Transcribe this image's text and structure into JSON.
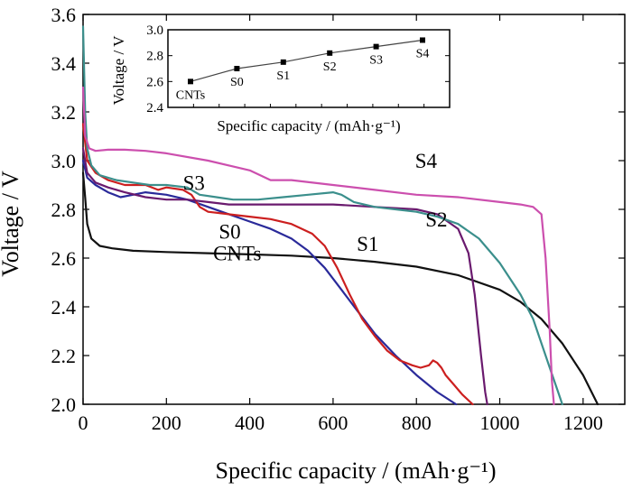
{
  "colors": {
    "CNTs": "#111111",
    "S0": "#2a2a9a",
    "S1": "#cc1f1f",
    "S2": "#6a1a6e",
    "S3": "#3b8f8c",
    "S4": "#cc4fae"
  },
  "chart_data": [
    {
      "type": "line",
      "xlabel": "Specific capacity / (mAh·g⁻¹)",
      "ylabel": "Voltage / V",
      "xlim": [
        0,
        1300
      ],
      "ylim": [
        2.0,
        3.6
      ],
      "x_ticks": [
        0,
        200,
        400,
        600,
        800,
        1000,
        1200
      ],
      "x_tick_labels": [
        "0",
        "200",
        "400",
        "600",
        "800",
        "1000",
        "1200"
      ],
      "y_ticks": [
        2.0,
        2.2,
        2.4,
        2.6,
        2.8,
        3.0,
        3.2,
        3.4,
        3.6
      ],
      "y_tick_labels": [
        "2.0",
        "2.2",
        "2.4",
        "2.6",
        "2.8",
        "3.0",
        "3.2",
        "3.4",
        "3.6"
      ],
      "grid": false,
      "series": [
        {
          "name": "CNTs",
          "label_at": [
            370,
            2.59
          ],
          "x": [
            0,
            5,
            10,
            20,
            40,
            70,
            120,
            200,
            300,
            400,
            500,
            600,
            700,
            800,
            900,
            1000,
            1050,
            1100,
            1150,
            1200,
            1235
          ],
          "y": [
            2.95,
            2.85,
            2.74,
            2.68,
            2.65,
            2.64,
            2.63,
            2.625,
            2.62,
            2.615,
            2.61,
            2.6,
            2.585,
            2.565,
            2.53,
            2.47,
            2.42,
            2.35,
            2.25,
            2.12,
            2.0
          ]
        },
        {
          "name": "S0",
          "label_at": [
            352,
            2.68
          ],
          "x": [
            0,
            10,
            30,
            60,
            90,
            120,
            150,
            200,
            250,
            300,
            350,
            400,
            450,
            500,
            540,
            580,
            620,
            660,
            700,
            750,
            800,
            850,
            895
          ],
          "y": [
            3.0,
            2.93,
            2.9,
            2.87,
            2.85,
            2.86,
            2.87,
            2.86,
            2.84,
            2.81,
            2.78,
            2.75,
            2.72,
            2.68,
            2.63,
            2.56,
            2.47,
            2.38,
            2.29,
            2.2,
            2.12,
            2.05,
            2.0
          ]
        },
        {
          "name": "S1",
          "label_at": [
            683,
            2.63
          ],
          "x": [
            0,
            10,
            30,
            60,
            100,
            150,
            180,
            200,
            240,
            260,
            280,
            300,
            350,
            400,
            450,
            500,
            550,
            580,
            610,
            640,
            670,
            700,
            730,
            760,
            790,
            810,
            830,
            840,
            850,
            860,
            870,
            890,
            910,
            935
          ],
          "y": [
            3.15,
            3.0,
            2.95,
            2.92,
            2.9,
            2.9,
            2.88,
            2.89,
            2.88,
            2.86,
            2.81,
            2.79,
            2.78,
            2.77,
            2.76,
            2.74,
            2.7,
            2.65,
            2.56,
            2.45,
            2.35,
            2.28,
            2.22,
            2.18,
            2.16,
            2.15,
            2.16,
            2.18,
            2.17,
            2.15,
            2.12,
            2.08,
            2.04,
            2.0
          ]
        },
        {
          "name": "S2",
          "label_at": [
            848,
            2.73
          ],
          "x": [
            0,
            10,
            30,
            60,
            100,
            150,
            200,
            250,
            300,
            350,
            400,
            500,
            600,
            700,
            800,
            850,
            900,
            925,
            940,
            955,
            965,
            970
          ],
          "y": [
            3.05,
            2.95,
            2.91,
            2.89,
            2.87,
            2.85,
            2.84,
            2.84,
            2.83,
            2.82,
            2.82,
            2.82,
            2.82,
            2.81,
            2.8,
            2.78,
            2.72,
            2.62,
            2.45,
            2.2,
            2.05,
            2.0
          ]
        },
        {
          "name": "S3",
          "label_at": [
            266,
            2.88
          ],
          "x": [
            0,
            5,
            10,
            20,
            40,
            80,
            120,
            160,
            200,
            250,
            280,
            320,
            360,
            420,
            480,
            540,
            600,
            620,
            650,
            700,
            750,
            800,
            850,
            900,
            950,
            1000,
            1050,
            1080,
            1100,
            1120,
            1140,
            1150
          ],
          "y": [
            3.55,
            3.2,
            3.05,
            2.98,
            2.94,
            2.92,
            2.91,
            2.9,
            2.9,
            2.89,
            2.86,
            2.85,
            2.84,
            2.84,
            2.85,
            2.86,
            2.87,
            2.86,
            2.83,
            2.81,
            2.8,
            2.79,
            2.77,
            2.74,
            2.68,
            2.58,
            2.45,
            2.35,
            2.25,
            2.15,
            2.05,
            2.0
          ]
        },
        {
          "name": "S4",
          "label_at": [
            823,
            2.97
          ],
          "x": [
            0,
            5,
            15,
            30,
            60,
            100,
            150,
            200,
            300,
            400,
            450,
            500,
            600,
            700,
            800,
            900,
            1000,
            1050,
            1080,
            1100,
            1110,
            1120,
            1125,
            1130
          ],
          "y": [
            3.3,
            3.1,
            3.05,
            3.04,
            3.045,
            3.045,
            3.04,
            3.03,
            3.0,
            2.96,
            2.92,
            2.92,
            2.9,
            2.88,
            2.86,
            2.85,
            2.83,
            2.82,
            2.81,
            2.78,
            2.6,
            2.3,
            2.1,
            2.0
          ]
        }
      ],
      "curve_labels": [
        "CNTs",
        "S0",
        "S1",
        "S2",
        "S3",
        "S4"
      ]
    },
    {
      "type": "line",
      "inset": true,
      "xlabel": "Specific capacity / (mAh·g⁻¹)",
      "ylabel": "Voltage / V",
      "ylim": [
        2.4,
        3.0
      ],
      "y_ticks": [
        2.4,
        2.6,
        2.8,
        3.0
      ],
      "y_tick_labels": [
        "2.4",
        "2.6",
        "2.8",
        "3.0"
      ],
      "categories": [
        "CNTs",
        "S0",
        "S1",
        "S2",
        "S3",
        "S4"
      ],
      "values": [
        2.6,
        2.7,
        2.75,
        2.82,
        2.87,
        2.92
      ]
    }
  ]
}
